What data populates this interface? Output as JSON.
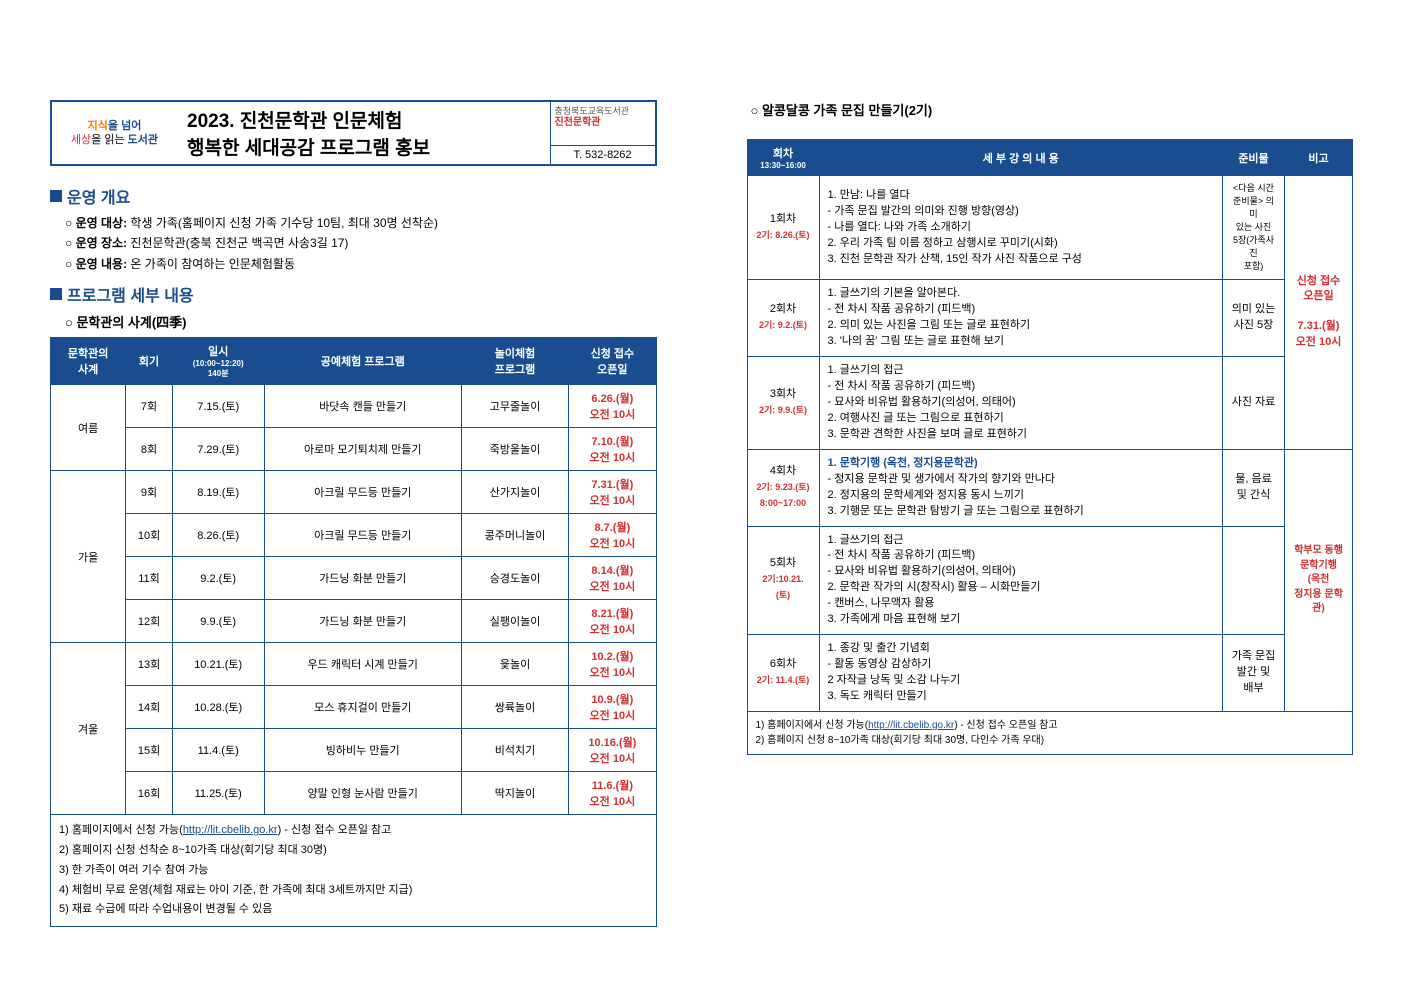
{
  "header": {
    "logo_l1a": "지식",
    "logo_l1b": "을 넘어",
    "logo_l2a": "세상",
    "logo_l2b": "을 읽는 ",
    "logo_l2c": "도서관",
    "title1": "2023. 진천문학관 인문체험",
    "title2": "행복한 세대공감 프로그램 홍보",
    "sponsor1": "충청북도교육도서관",
    "sponsor2": "진천문학관",
    "tel": "T. 532-8262"
  },
  "sec1": {
    "heading": "운영 개요",
    "items": [
      {
        "label": "운영 대상:",
        "text": "학생 가족(홈페이지 신청 가족 기수당 10팀, 최대 30명 선착순)"
      },
      {
        "label": "운영 장소:",
        "text": "진천문학관(충북 진천군 백곡면 사송3길 17)"
      },
      {
        "label": "운영 내용:",
        "text": "온 가족이 참여하는 인문체험활동"
      }
    ]
  },
  "sec2": {
    "heading": "프로그램 세부 내용",
    "sub": "문학관의 사계(四季)"
  },
  "table1": {
    "headers": [
      "문학관의\n사계",
      "회기",
      "일시",
      "공예체험 프로그램",
      "놀이체험\n프로그램",
      "신청 접수\n오픈일"
    ],
    "h3sub": "(10:00~12:20)\n140분",
    "groups": [
      {
        "name": "여름",
        "rows": [
          {
            "no": "7회",
            "date": "7.15.(토)",
            "craft": "바닷속 캔들 만들기",
            "play": "고무줄놀이",
            "open": "6.26.(월)\n오전 10시"
          },
          {
            "no": "8회",
            "date": "7.29.(토)",
            "craft": "아로마 모기퇴치제 만들기",
            "play": "죽방울놀이",
            "open": "7.10.(월)\n오전 10시"
          }
        ]
      },
      {
        "name": "가을",
        "rows": [
          {
            "no": "9회",
            "date": "8.19.(토)",
            "craft": "아크릴 무드등 만들기",
            "play": "산가지놀이",
            "open": "7.31.(월)\n오전 10시"
          },
          {
            "no": "10회",
            "date": "8.26.(토)",
            "craft": "아크릴 무드등 만들기",
            "play": "콩주머니놀이",
            "open": "8.7.(월)\n오전 10시"
          },
          {
            "no": "11회",
            "date": "9.2.(토)",
            "craft": "가드닝 화분 만들기",
            "play": "승경도놀이",
            "open": "8.14.(월)\n오전 10시"
          },
          {
            "no": "12회",
            "date": "9.9.(토)",
            "craft": "가드닝 화분 만들기",
            "play": "실팽이놀이",
            "open": "8.21.(월)\n오전 10시"
          }
        ]
      },
      {
        "name": "겨울",
        "rows": [
          {
            "no": "13회",
            "date": "10.21.(토)",
            "craft": "우드 캐릭터 시계 만들기",
            "play": "윷놀이",
            "open": "10.2.(월)\n오전 10시"
          },
          {
            "no": "14회",
            "date": "10.28.(토)",
            "craft": "모스 휴지걸이 만들기",
            "play": "쌍륙놀이",
            "open": "10.9.(월)\n오전 10시"
          },
          {
            "no": "15회",
            "date": "11.4.(토)",
            "craft": "빙하비누 만들기",
            "play": "비석치기",
            "open": "10.16.(월)\n오전 10시"
          },
          {
            "no": "16회",
            "date": "11.25.(토)",
            "craft": "양말 인형 눈사람 만들기",
            "play": "딱지놀이",
            "open": "11.6.(월)\n오전 10시"
          }
        ]
      }
    ]
  },
  "notes1": {
    "l1a": "1) 홈페이지에서 신청 가능(",
    "l1url": "http://lit.cbelib.go.kr",
    "l1b": ") - 신청 접수 오픈일 참고",
    "l2": "2) 홈페이지 신청 선착순 8~10가족 대상(회기당 최대 30명)",
    "l3": "3) 한 가족이 여러 기수 참여 가능",
    "l4": "4) 체험비 무료 운영(체험 재료는 아이 기준, 한 가족에 최대 3세트까지만 지급)",
    "l5": "5) 재료 수급에 따라 수업내용이 변경될 수 있음"
  },
  "right": {
    "title": "알콩달콩 가족 문집 만들기(2기)",
    "headers": [
      "회차",
      "세 부 강 의 내 용",
      "준비물",
      "비고"
    ],
    "h1sub": "13:30~16:00",
    "sessions": [
      {
        "no": "1회차",
        "nosub": "2기: 8.26.(토)",
        "content": "1. 만남: 나를 열다\n  - 가족 문집 발간의 의미와 진행 방향(영상)\n  - 나를 열다: 나와 가족 소개하기\n2. 우리 가족 팀 이름 정하고 삼행시로 꾸미기(시화)\n3. 진천 문학관 작가 산책, 15인 작가 사진 작품으로 구성",
        "prep": "<다음 시간\n준비물> 의미\n있는 사진\n5장(가족사진\n포함)",
        "note": ""
      },
      {
        "no": "2회차",
        "nosub": "2기: 9.2.(토)",
        "content": "1. 글쓰기의 기본을 알아본다.\n  - 전 차시 작품 공유하기 (피드백)\n2. 의미 있는 사진을 그림 또는 글로 표현하기\n3. '나의 꿈' 그림 또는 글로 표현해 보기",
        "prep": "의미 있는\n사진 5장",
        "note": ""
      },
      {
        "no": "3회차",
        "nosub": "2기: 9.9.(토)",
        "content": "1. 글쓰기의 접근\n  - 전 차시 작품 공유하기 (피드백)\n  - 묘사와 비유법 활용하기(의성어, 의태어)\n2. 여행사진 글 또는 그림으로 표현하기\n3. 문학관 견학한 사진을 보며 글로 표현하기",
        "prep": "사진 자료",
        "note": ""
      },
      {
        "no": "4회차",
        "nosub": "2기: 9.23.(토)\n8:00~17:00",
        "content_blue": "1. 문학기행 (옥천, 정지용문학관)",
        "content": "  - 정지용 문학관 및 생가에서 작가의 향기와 만나다\n2. 정지용의 문학세계와 정지용 동시 느끼기\n3. 기행문 또는 문학관 탐방기 글 또는 그림으로 표현하기",
        "prep": "물, 음료\n및 간식",
        "note": "학부모 동행\n문학기행\n(옥천\n정지용 문학관)"
      },
      {
        "no": "5회차",
        "nosub": "2기:10.21.(토)",
        "content": "1. 글쓰기의 접근\n  - 전 차시 작품 공유하기 (피드백)\n  - 묘사와 비유법 활용하기(의성어, 의태어)\n2. 문학관 작가의 시(창작시) 활용 – 시화만들기\n  - 캔버스, 나무액자 활용\n3. 가족에게 마음 표현해 보기",
        "prep": "",
        "note": ""
      },
      {
        "no": "6회차",
        "nosub": "2기: 11.4.(토)",
        "content": "1. 종강 및 출간 기념회\n  - 활동 동영상 감상하기\n2 자작글 낭독 및 소감 나누기\n3. 독도 캐릭터 만들기",
        "prep": "가족 문집\n발간 및\n배부",
        "note": ""
      }
    ],
    "bignote_a": "신청 접수\n오픈일",
    "bignote_b": "7.31.(월)\n오전 10시"
  },
  "notes2": {
    "l1a": "1) 홈페이지에서 신청 가능(",
    "l1url": "http://lit.cbelib.go.kr",
    "l1b": ") - 신청 접수 오픈일 참고",
    "l2": "2) 홈페이지 신청 8~10가족 대상(회기당 최대 30명, 다인수 가족 우대)"
  }
}
